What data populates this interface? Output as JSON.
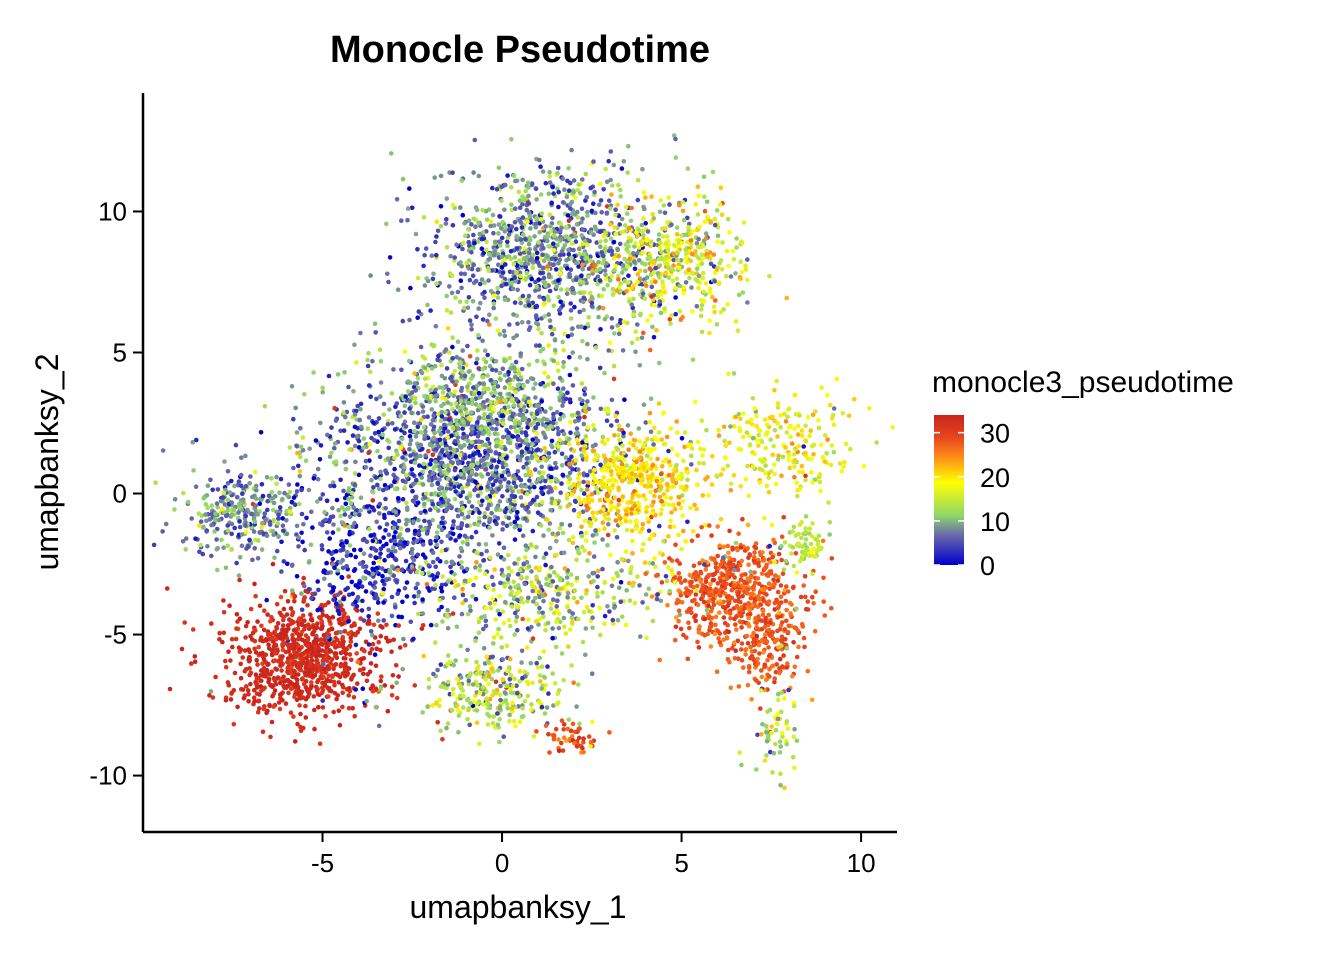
{
  "chart_data": {
    "type": "scatter",
    "title": "Monocle Pseudotime",
    "xlabel": "umapbanksy_1",
    "ylabel": "umapbanksy_2",
    "xlim": [
      -10,
      11
    ],
    "ylim": [
      -12,
      14.2
    ],
    "x_ticks": [
      -5,
      0,
      5,
      10
    ],
    "y_ticks": [
      -10,
      -5,
      0,
      5,
      10
    ],
    "x_tick_labels": [
      "-5",
      "0",
      "5",
      "10"
    ],
    "y_tick_labels": [
      "-10",
      "-5",
      "0",
      "5",
      "10"
    ],
    "grid": false,
    "legend": {
      "title": "monocle3_pseudotime",
      "position": "right",
      "ticks": [
        0,
        10,
        20,
        30
      ],
      "tick_labels": [
        "0",
        "10",
        "20",
        "30"
      ],
      "range": [
        0,
        34
      ],
      "colors": [
        "#0000cc",
        "#6a6aaa",
        "#8fd66b",
        "#ffff00",
        "#ff8c1a",
        "#e8461e",
        "#c8241d"
      ]
    },
    "colormap_stops": [
      0,
      0.2,
      0.33,
      0.55,
      0.72,
      0.85,
      1
    ],
    "clusters": [
      {
        "region": "bottom-left dense cluster",
        "cx": -5.5,
        "cy": -5.8,
        "sx": 1.05,
        "sy": 1.05,
        "n": 900,
        "value_mean": 33,
        "value_sd": 1.5
      },
      {
        "region": "left-center mixed",
        "cx": -3.5,
        "cy": -2.5,
        "sx": 1.2,
        "sy": 1.2,
        "n": 380,
        "value_mean": 3,
        "value_sd": 4
      },
      {
        "region": "left arm",
        "cx": -7.2,
        "cy": -0.8,
        "sx": 1.0,
        "sy": 0.8,
        "n": 300,
        "value_mean": 8,
        "value_sd": 3
      },
      {
        "region": "central body",
        "cx": -1.0,
        "cy": 1.0,
        "sx": 2.2,
        "sy": 1.5,
        "n": 1500,
        "value_mean": 7,
        "value_sd": 4
      },
      {
        "region": "central upper",
        "cx": -0.5,
        "cy": 3.5,
        "sx": 1.6,
        "sy": 0.9,
        "n": 450,
        "value_mean": 10,
        "value_sd": 4
      },
      {
        "region": "top cluster",
        "cx": 1.2,
        "cy": 8.5,
        "sx": 1.7,
        "sy": 1.5,
        "n": 1100,
        "value_mean": 8,
        "value_sd": 4
      },
      {
        "region": "top-right arm",
        "cx": 4.8,
        "cy": 8.2,
        "sx": 1.0,
        "sy": 1.1,
        "n": 380,
        "value_mean": 17,
        "value_sd": 5
      },
      {
        "region": "right-center yellow",
        "cx": 3.6,
        "cy": 0.3,
        "sx": 1.0,
        "sy": 1.1,
        "n": 480,
        "value_mean": 20,
        "value_sd": 3
      },
      {
        "region": "right orange cluster",
        "cx": 6.4,
        "cy": -3.5,
        "sx": 0.9,
        "sy": 1.0,
        "n": 520,
        "value_mean": 28,
        "value_sd": 2
      },
      {
        "region": "right orange arm",
        "cx": 7.4,
        "cy": -5.3,
        "sx": 0.6,
        "sy": 1.0,
        "n": 180,
        "value_mean": 28,
        "value_sd": 2
      },
      {
        "region": "bottom loop",
        "cx": -0.3,
        "cy": -7.0,
        "sx": 1.1,
        "sy": 0.8,
        "n": 300,
        "value_mean": 13,
        "value_sd": 5
      },
      {
        "region": "lower center strands",
        "cx": 1.0,
        "cy": -3.5,
        "sx": 1.8,
        "sy": 0.9,
        "n": 400,
        "value_mean": 12,
        "value_sd": 5
      },
      {
        "region": "far-right upper arm",
        "cx": 7.8,
        "cy": 1.8,
        "sx": 1.0,
        "sy": 1.0,
        "n": 220,
        "value_mean": 18,
        "value_sd": 3
      },
      {
        "region": "far-right lower arm",
        "cx": 8.5,
        "cy": -1.8,
        "sx": 0.4,
        "sy": 0.5,
        "n": 70,
        "value_mean": 14,
        "value_sd": 2
      },
      {
        "region": "bottom-right tail",
        "cx": 7.6,
        "cy": -8.5,
        "sx": 0.35,
        "sy": 0.8,
        "n": 60,
        "value_mean": 15,
        "value_sd": 4
      },
      {
        "region": "bottom loop tail",
        "cx": 2.0,
        "cy": -8.6,
        "sx": 0.35,
        "sy": 0.35,
        "n": 50,
        "value_mean": 28,
        "value_sd": 3
      }
    ]
  }
}
